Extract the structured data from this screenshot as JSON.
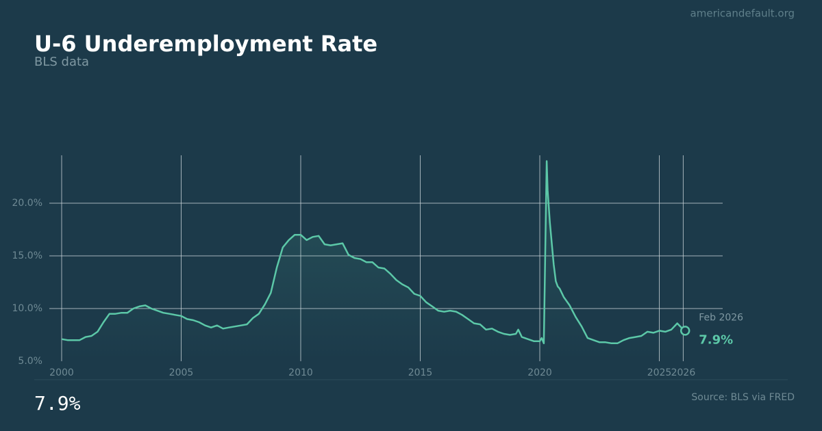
{
  "site": "americandefault.org",
  "chart_data": {
    "type": "line",
    "title": "U-6 Underemployment Rate",
    "subtitle": "BLS data",
    "color": "#5cc8a8",
    "grid": true,
    "x": [
      2000.0,
      2000.25,
      2000.5,
      2000.75,
      2001.0,
      2001.25,
      2001.5,
      2001.75,
      2002.0,
      2002.25,
      2002.5,
      2002.75,
      2003.0,
      2003.25,
      2003.5,
      2003.75,
      2004.0,
      2004.25,
      2004.5,
      2004.75,
      2005.0,
      2005.25,
      2005.5,
      2005.75,
      2006.0,
      2006.25,
      2006.5,
      2006.75,
      2007.0,
      2007.25,
      2007.5,
      2007.75,
      2008.0,
      2008.25,
      2008.5,
      2008.75,
      2009.0,
      2009.25,
      2009.5,
      2009.75,
      2010.0,
      2010.25,
      2010.5,
      2010.75,
      2011.0,
      2011.25,
      2011.5,
      2011.75,
      2012.0,
      2012.25,
      2012.5,
      2012.75,
      2013.0,
      2013.25,
      2013.5,
      2013.75,
      2014.0,
      2014.25,
      2014.5,
      2014.75,
      2015.0,
      2015.25,
      2015.5,
      2015.75,
      2016.0,
      2016.25,
      2016.5,
      2016.75,
      2017.0,
      2017.25,
      2017.5,
      2017.75,
      2018.0,
      2018.25,
      2018.5,
      2018.75,
      2019.0,
      2019.1,
      2019.25,
      2019.5,
      2019.75,
      2020.0,
      2020.08,
      2020.17,
      2020.29,
      2020.33,
      2020.42,
      2020.5,
      2020.58,
      2020.67,
      2020.75,
      2020.83,
      2021.0,
      2021.25,
      2021.5,
      2021.75,
      2022.0,
      2022.25,
      2022.5,
      2022.75,
      2023.0,
      2023.25,
      2023.5,
      2023.75,
      2024.0,
      2024.25,
      2024.5,
      2024.75,
      2025.0,
      2025.25,
      2025.5,
      2025.75,
      2025.92,
      2026.08
    ],
    "values": [
      7.1,
      7.0,
      7.0,
      7.0,
      7.3,
      7.4,
      7.8,
      8.7,
      9.5,
      9.5,
      9.6,
      9.6,
      10.0,
      10.2,
      10.3,
      10.0,
      9.8,
      9.6,
      9.5,
      9.4,
      9.3,
      9.0,
      8.9,
      8.7,
      8.4,
      8.2,
      8.4,
      8.1,
      8.2,
      8.3,
      8.4,
      8.5,
      9.1,
      9.5,
      10.4,
      11.5,
      13.9,
      15.8,
      16.5,
      17.0,
      17.0,
      16.5,
      16.8,
      16.9,
      16.1,
      16.0,
      16.1,
      16.2,
      15.1,
      14.8,
      14.7,
      14.4,
      14.4,
      13.9,
      13.8,
      13.3,
      12.7,
      12.3,
      12.0,
      11.4,
      11.2,
      10.6,
      10.2,
      9.8,
      9.7,
      9.8,
      9.7,
      9.4,
      9.0,
      8.6,
      8.5,
      8.0,
      8.1,
      7.8,
      7.6,
      7.5,
      7.6,
      8.0,
      7.3,
      7.1,
      6.9,
      6.9,
      7.2,
      6.7,
      24.0,
      21.2,
      18.2,
      16.2,
      14.2,
      12.6,
      12.1,
      11.9,
      11.1,
      10.3,
      9.2,
      8.3,
      7.2,
      7.0,
      6.8,
      6.8,
      6.7,
      6.7,
      7.0,
      7.2,
      7.3,
      7.4,
      7.8,
      7.7,
      7.9,
      7.8,
      8.0,
      8.6,
      8.2,
      7.9
    ],
    "xlim": [
      2000,
      2027.65
    ],
    "ylim": [
      5,
      24.55
    ],
    "xticks": [
      2000,
      2005,
      2010,
      2015,
      2020,
      2025,
      2026
    ],
    "yticks": [
      {
        "value": 5,
        "label": "5.0%"
      },
      {
        "value": 10,
        "label": "10.0%"
      },
      {
        "value": 15,
        "label": "15.0%"
      },
      {
        "value": 20,
        "label": "20.0%"
      }
    ],
    "annotation": {
      "label": "Feb 2026",
      "value_label": "7.9%"
    },
    "headline": "7.9%",
    "source": "Source: BLS via FRED"
  }
}
